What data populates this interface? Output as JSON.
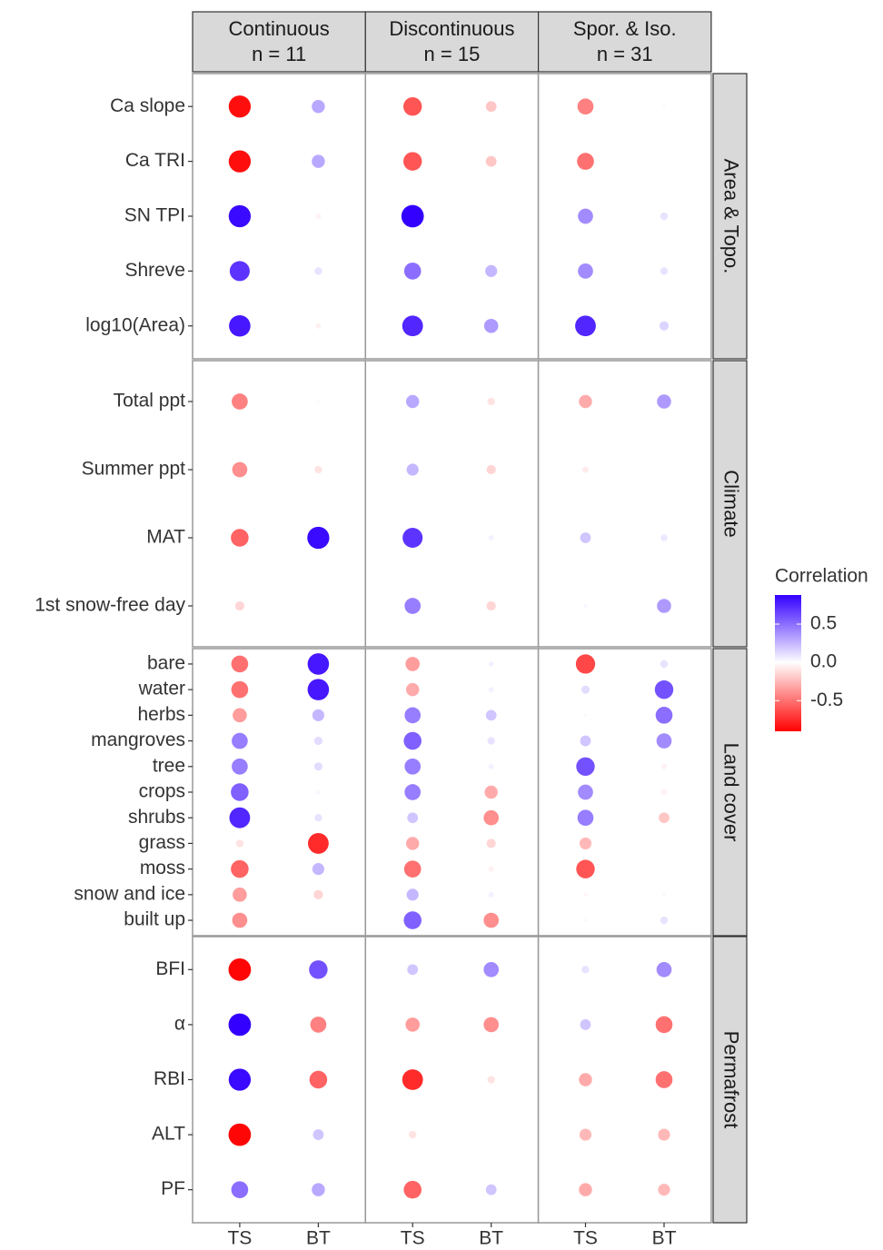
{
  "chart_data": {
    "type": "dot-matrix",
    "columns": [
      {
        "name": "Continuous",
        "n": "n = 11"
      },
      {
        "name": "Discontinuous",
        "n": "n = 15"
      },
      {
        "name": "Spor. & Iso.",
        "n": "n = 31"
      }
    ],
    "x_categories": [
      "TS",
      "BT"
    ],
    "groups": [
      {
        "name": "Area & Topo.",
        "variables": [
          "Ca slope",
          "Ca TRI",
          "SN TPI",
          "Shreve",
          "log10(Area)"
        ],
        "values": [
          [
            -0.85,
            0.3,
            -0.6,
            -0.2,
            -0.45,
            0.02
          ],
          [
            -0.85,
            0.3,
            -0.6,
            -0.2,
            -0.5,
            0
          ],
          [
            0.85,
            -0.05,
            0.88,
            0,
            0.4,
            0.1
          ],
          [
            0.7,
            0.1,
            0.5,
            0.25,
            0.4,
            0.1
          ],
          [
            0.8,
            -0.05,
            0.75,
            0.35,
            0.75,
            0.15
          ]
        ]
      },
      {
        "name": "Climate",
        "variables": [
          "Total ppt",
          "Summer ppt",
          "MAT",
          "1st snow-free day"
        ],
        "values": [
          [
            -0.45,
            -0.02,
            0.3,
            -0.1,
            -0.3,
            0.35
          ],
          [
            -0.4,
            -0.1,
            0.25,
            -0.15,
            -0.07,
            0
          ],
          [
            -0.55,
            0.85,
            0.7,
            0.05,
            0.2,
            0.08
          ],
          [
            -0.15,
            0,
            0.45,
            -0.15,
            0.03,
            0.35
          ]
        ]
      },
      {
        "name": "Land cover",
        "variables": [
          "bare",
          "water",
          "herbs",
          "mangroves",
          "tree",
          "crops",
          "shrubs",
          "grass",
          "moss",
          "snow and ice",
          "built up"
        ],
        "values": [
          [
            -0.5,
            0.8,
            -0.35,
            0.05,
            -0.65,
            0.1
          ],
          [
            -0.5,
            0.8,
            -0.3,
            0.05,
            0.12,
            0.6
          ],
          [
            -0.35,
            0.25,
            0.45,
            0.2,
            0.02,
            0.5
          ],
          [
            0.45,
            0.12,
            0.55,
            0.1,
            0.2,
            0.4
          ],
          [
            0.45,
            0.12,
            0.45,
            0.05,
            0.6,
            -0.05
          ],
          [
            0.55,
            0.03,
            0.45,
            -0.3,
            0.4,
            -0.05
          ],
          [
            0.75,
            0.1,
            0.2,
            -0.4,
            0.45,
            -0.2
          ],
          [
            -0.1,
            -0.75,
            -0.3,
            -0.15,
            -0.25,
            0.01
          ],
          [
            -0.55,
            0.25,
            -0.5,
            -0.05,
            -0.6,
            0
          ],
          [
            -0.35,
            -0.15,
            0.25,
            0.05,
            -0.03,
            0.03
          ],
          [
            -0.4,
            0.01,
            0.55,
            -0.4,
            0.02,
            0.1
          ]
        ]
      },
      {
        "name": "Permafrost",
        "variables": [
          "BFI",
          "α",
          "RBI",
          "ALT",
          "PF"
        ],
        "values": [
          [
            -0.88,
            0.6,
            0.2,
            0.4,
            0.1,
            0.4
          ],
          [
            0.88,
            -0.45,
            -0.35,
            -0.4,
            0.2,
            -0.5
          ],
          [
            0.85,
            -0.55,
            -0.75,
            -0.1,
            -0.3,
            -0.5
          ],
          [
            -0.88,
            0.2,
            -0.1,
            0,
            -0.25,
            -0.25
          ],
          [
            0.5,
            0.3,
            -0.55,
            0.2,
            -0.3,
            -0.25
          ]
        ]
      }
    ],
    "legend": {
      "title": "Correlation",
      "clim": [
        -0.9,
        0.88
      ],
      "ticks": [
        0.5,
        {
          "value": 0,
          "label": "0.0"
        },
        -0.5
      ],
      "colors": {
        "low": "#ff0000",
        "mid": "#ffffff",
        "high": "#3300ff"
      }
    }
  }
}
